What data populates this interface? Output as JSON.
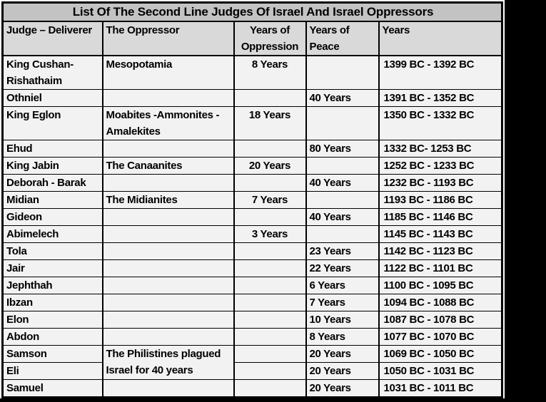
{
  "colors": {
    "page_bg": "#ffffff",
    "band": "#000000",
    "border": "#000000",
    "title_bg": "#c3c3c3",
    "header_bg": "#d9d9d9",
    "row_bg": "#f2f2f2",
    "text": "#000000"
  },
  "table": {
    "title": "List Of The Second Line Judges Of Israel And Israel Oppressors",
    "columns": [
      "Judge – Deliverer",
      "The Oppressor",
      "Years of Oppression",
      "Years of Peace",
      "Years"
    ],
    "rows": [
      {
        "judge": "King Cushan-Rishathaim",
        "oppressor": "Mesopotamia",
        "oppression": "8 Years",
        "peace": "",
        "years": "1399 BC - 1392 BC",
        "units": 2
      },
      {
        "judge": "Othniel",
        "oppressor": "",
        "oppression": "",
        "peace": "40 Years",
        "years": "1391 BC - 1352 BC",
        "units": 1
      },
      {
        "judge": "King Eglon",
        "oppressor": "Moabites -Ammonites - Amalekites",
        "oppression": "18 Years",
        "peace": "",
        "years": "1350 BC - 1332 BC",
        "units": 2
      },
      {
        "judge": "Ehud",
        "oppressor": "",
        "oppression": "",
        "peace": "80 Years",
        "years": "1332 BC- 1253 BC",
        "units": 1
      },
      {
        "judge": "King Jabin",
        "oppressor": "The Canaanites",
        "oppression": "20 Years",
        "peace": "",
        "years": "1252 BC - 1233 BC",
        "units": 1
      },
      {
        "judge": "Deborah - Barak",
        "oppressor": "",
        "oppression": "",
        "peace": "40 Years",
        "years": "1232 BC - 1193 BC",
        "units": 1
      },
      {
        "judge": "Midian",
        "oppressor": "The Midianites",
        "oppression": "7 Years",
        "peace": "",
        "years": "1193 BC - 1186 BC",
        "units": 1
      },
      {
        "judge": "Gideon",
        "oppressor": "",
        "oppression": "",
        "peace": "40 Years",
        "years": "1185 BC - 1146 BC",
        "units": 1
      },
      {
        "judge": "Abimelech",
        "oppressor": "",
        "oppression": "3 Years",
        "peace": "",
        "years": "1145 BC - 1143 BC",
        "units": 1
      },
      {
        "judge": "Tola",
        "oppressor": "",
        "oppression": "",
        "peace": "23 Years",
        "years": "1142 BC - 1123 BC",
        "units": 1
      },
      {
        "judge": "Jair",
        "oppressor": "",
        "oppression": "",
        "peace": "22 Years",
        "years": "1122 BC - 1101 BC",
        "units": 1
      },
      {
        "judge": "Jephthah",
        "oppressor": "",
        "oppression": "",
        "peace": "6 Years",
        "years": "1100 BC - 1095 BC",
        "units": 1
      },
      {
        "judge": "Ibzan",
        "oppressor": "",
        "oppression": "",
        "peace": "7 Years",
        "years": "1094 BC - 1088 BC",
        "units": 1
      },
      {
        "judge": "Elon",
        "oppressor": "",
        "oppression": "",
        "peace": "10 Years",
        "years": "1087 BC - 1078 BC",
        "units": 1
      },
      {
        "judge": "Abdon",
        "oppressor": "",
        "oppression": "",
        "peace": "8 Years",
        "years": "1077 BC - 1070 BC",
        "units": 1
      },
      {
        "judge": "Samson",
        "oppressor": "The Philistines plagued Israel for 40 years",
        "oppressor_rowspan": 2,
        "oppression": "",
        "peace": "20 Years",
        "years": "1069 BC - 1050 BC",
        "units": 1
      },
      {
        "judge": "Eli",
        "oppressor_merged": true,
        "oppression": "",
        "peace": "20 Years",
        "years": "1050 BC - 1031 BC",
        "units": 1
      },
      {
        "judge": "Samuel",
        "oppressor": "",
        "oppression": "",
        "peace": "20 Years",
        "years": "1031 BC - 1011 BC",
        "units": 1
      }
    ]
  }
}
